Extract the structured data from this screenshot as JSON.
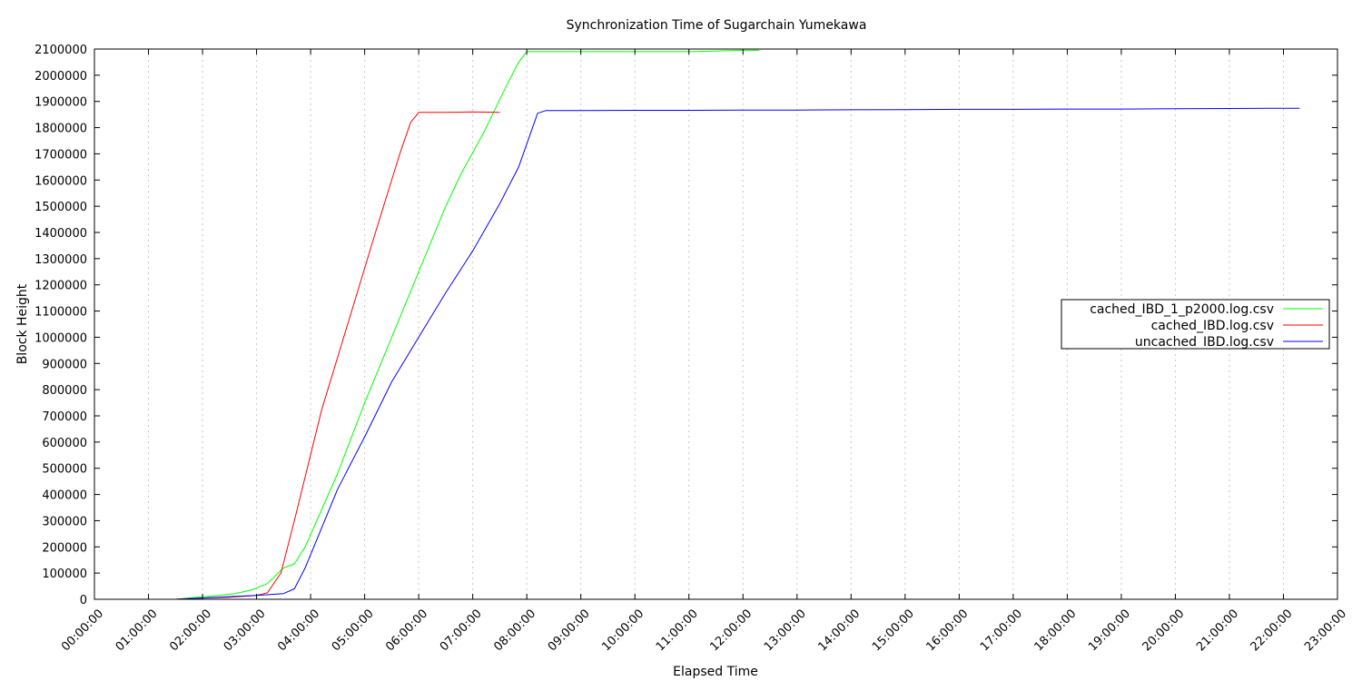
{
  "chart_data": {
    "type": "line",
    "title": "Synchronization Time of Sugarchain Yumekawa",
    "xlabel": "Elapsed Time",
    "ylabel": "Block Height",
    "x_unit": "hours",
    "xlim": [
      0,
      23
    ],
    "ylim": [
      0,
      2100000
    ],
    "x_ticks": [
      "00:00:00",
      "01:00:00",
      "02:00:00",
      "03:00:00",
      "04:00:00",
      "05:00:00",
      "06:00:00",
      "07:00:00",
      "08:00:00",
      "09:00:00",
      "10:00:00",
      "11:00:00",
      "12:00:00",
      "13:00:00",
      "14:00:00",
      "15:00:00",
      "16:00:00",
      "17:00:00",
      "18:00:00",
      "19:00:00",
      "20:00:00",
      "21:00:00",
      "22:00:00",
      "23:00:00"
    ],
    "y_ticks": [
      "0",
      "100000",
      "200000",
      "300000",
      "400000",
      "500000",
      "600000",
      "700000",
      "800000",
      "900000",
      "1000000",
      "1100000",
      "1200000",
      "1300000",
      "1400000",
      "1500000",
      "1600000",
      "1700000",
      "1800000",
      "1900000",
      "2000000",
      "2100000"
    ],
    "grid": "vertical-dotted",
    "legend_position": "right",
    "series": [
      {
        "name": "cached_IBD_1_p2000.log.csv",
        "color": "#00ff00",
        "x": [
          1.5,
          2.0,
          2.3,
          2.6,
          2.9,
          3.2,
          3.5,
          3.7,
          3.9,
          4.5,
          5.0,
          5.5,
          6.0,
          6.5,
          6.8,
          7.2,
          7.6,
          7.85,
          8.0,
          8.5,
          9.0,
          10.0,
          11.0,
          12.0,
          12.3
        ],
        "y": [
          0,
          10000,
          15000,
          22000,
          35000,
          60000,
          120000,
          135000,
          200000,
          480000,
          750000,
          1000000,
          1250000,
          1500000,
          1630000,
          1780000,
          1950000,
          2050000,
          2090000,
          2090000,
          2090000,
          2090000,
          2090000,
          2095000,
          2095000
        ]
      },
      {
        "name": "cached_IBD.log.csv",
        "color": "#ff0000",
        "x": [
          1.5,
          2.0,
          2.5,
          3.0,
          3.2,
          3.45,
          3.7,
          4.2,
          4.7,
          5.2,
          5.65,
          5.85,
          6.0,
          6.5,
          7.0,
          7.5
        ],
        "y": [
          0,
          5000,
          8000,
          15000,
          25000,
          100000,
          300000,
          720000,
          1060000,
          1400000,
          1700000,
          1820000,
          1858000,
          1858000,
          1860000,
          1858000
        ]
      },
      {
        "name": "uncached_IBD.log.csv",
        "color": "#0000ff",
        "x": [
          1.5,
          2.0,
          2.5,
          3.0,
          3.5,
          3.7,
          3.9,
          4.5,
          5.0,
          5.5,
          6.0,
          6.5,
          7.0,
          7.5,
          7.85,
          8.2,
          8.35,
          9.0,
          10.0,
          11.0,
          12.0,
          13.0,
          14.0,
          15.0,
          16.0,
          17.0,
          18.0,
          19.0,
          20.0,
          21.0,
          22.0,
          22.3
        ],
        "y": [
          0,
          5000,
          10000,
          15000,
          22000,
          40000,
          120000,
          420000,
          620000,
          830000,
          1000000,
          1170000,
          1330000,
          1510000,
          1650000,
          1855000,
          1865000,
          1865000,
          1866000,
          1866000,
          1867000,
          1867000,
          1868000,
          1869000,
          1870000,
          1870000,
          1871000,
          1871000,
          1872000,
          1873000,
          1874000,
          1874000
        ]
      }
    ]
  }
}
